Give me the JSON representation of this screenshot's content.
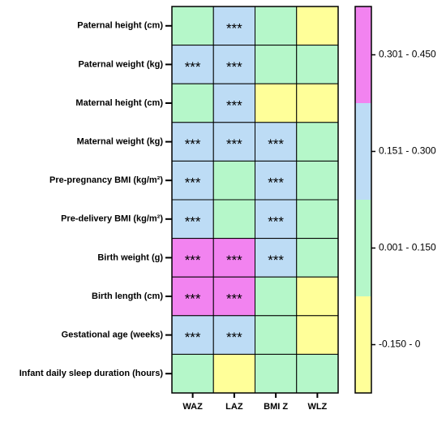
{
  "chart_data": {
    "type": "heatmap",
    "rows": [
      "Paternal height (cm)",
      "Paternal weight (kg)",
      "Maternal height (cm)",
      "Maternal weight (kg)",
      "Pre-pregnancy BMI (kg/m²)",
      "Pre-delivery BMI (kg/m²)",
      "Birth weight (g)",
      "Birth length (cm)",
      "Gestational age (weeks)",
      "Infant daily sleep duration (hours)"
    ],
    "columns": [
      "WAZ",
      "LAZ",
      "BMI Z",
      "WLZ"
    ],
    "bins": [
      {
        "label": "-0.150 - 0",
        "color": "#ffff99"
      },
      {
        "label": "0.001 - 0.150",
        "color": "#b5f7c9"
      },
      {
        "label": "0.151 - 0.300",
        "color": "#bddcf5"
      },
      {
        "label": "0.301 - 0.450",
        "color": "#f283f0"
      }
    ],
    "cells": [
      [
        1,
        2,
        1,
        0
      ],
      [
        2,
        2,
        1,
        1
      ],
      [
        1,
        2,
        0,
        0
      ],
      [
        2,
        2,
        2,
        1
      ],
      [
        2,
        1,
        2,
        1
      ],
      [
        2,
        1,
        2,
        1
      ],
      [
        3,
        3,
        2,
        1
      ],
      [
        3,
        3,
        1,
        0
      ],
      [
        2,
        2,
        1,
        0
      ],
      [
        1,
        0,
        1,
        1
      ]
    ],
    "annotations": [
      [
        null,
        "***",
        null,
        null
      ],
      [
        "***",
        "***",
        null,
        null
      ],
      [
        null,
        "***",
        null,
        null
      ],
      [
        "***",
        "***",
        "***",
        null
      ],
      [
        "***",
        null,
        "***",
        null
      ],
      [
        "***",
        null,
        "***",
        null
      ],
      [
        "***",
        "***",
        "***",
        null
      ],
      [
        "***",
        "***",
        null,
        null
      ],
      [
        "***",
        "***",
        null,
        null
      ],
      [
        null,
        null,
        null,
        null
      ]
    ]
  }
}
